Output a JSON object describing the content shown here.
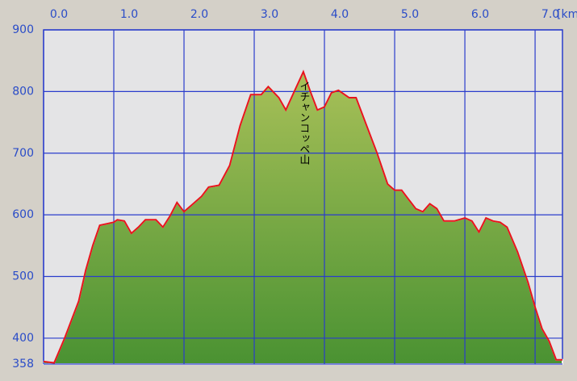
{
  "chart_data": {
    "type": "area",
    "x_unit": "[km",
    "x": [
      0,
      0.15,
      0.3,
      0.5,
      0.6,
      0.7,
      0.8,
      1.0,
      1.05,
      1.15,
      1.25,
      1.35,
      1.45,
      1.6,
      1.7,
      1.8,
      1.9,
      2.0,
      2.1,
      2.25,
      2.35,
      2.5,
      2.65,
      2.8,
      2.95,
      3.1,
      3.2,
      3.35,
      3.45,
      3.55,
      3.7,
      3.8,
      3.9,
      4.0,
      4.1,
      4.2,
      4.35,
      4.45,
      4.6,
      4.75,
      4.9,
      5.0,
      5.1,
      5.2,
      5.3,
      5.4,
      5.5,
      5.6,
      5.7,
      5.85,
      6.0,
      6.1,
      6.2,
      6.3,
      6.4,
      6.5,
      6.6,
      6.75,
      6.9,
      7.0,
      7.1,
      7.2,
      7.3,
      7.39
    ],
    "values": [
      362,
      360,
      400,
      460,
      510,
      550,
      583,
      588,
      592,
      590,
      570,
      580,
      592,
      592,
      580,
      598,
      620,
      605,
      615,
      630,
      645,
      648,
      680,
      745,
      795,
      795,
      808,
      790,
      770,
      795,
      832,
      800,
      770,
      775,
      798,
      802,
      790,
      790,
      745,
      700,
      650,
      640,
      640,
      625,
      610,
      605,
      618,
      610,
      590,
      590,
      595,
      590,
      572,
      595,
      590,
      588,
      580,
      540,
      490,
      450,
      415,
      395,
      365,
      365
    ],
    "color": "#e8141c",
    "area_colors": [
      "#a8c058",
      "#4a9232"
    ],
    "annotations": [
      {
        "text": "イチャンコッペ山",
        "x": 3.7
      }
    ],
    "xlim": [
      0,
      7.39
    ],
    "xticks": [
      {
        "value": 0,
        "label": "0.0"
      },
      {
        "value": 1,
        "label": "1.0"
      },
      {
        "value": 2,
        "label": "2.0"
      },
      {
        "value": 3,
        "label": "3.0"
      },
      {
        "value": 4,
        "label": "4.0"
      },
      {
        "value": 5,
        "label": "5.0"
      },
      {
        "value": 6,
        "label": "6.0"
      },
      {
        "value": 7,
        "label": "7.0"
      }
    ],
    "ylim": [
      358,
      900
    ],
    "yticks": [
      358,
      400,
      500,
      600,
      700,
      800,
      900
    ],
    "grid": true
  }
}
